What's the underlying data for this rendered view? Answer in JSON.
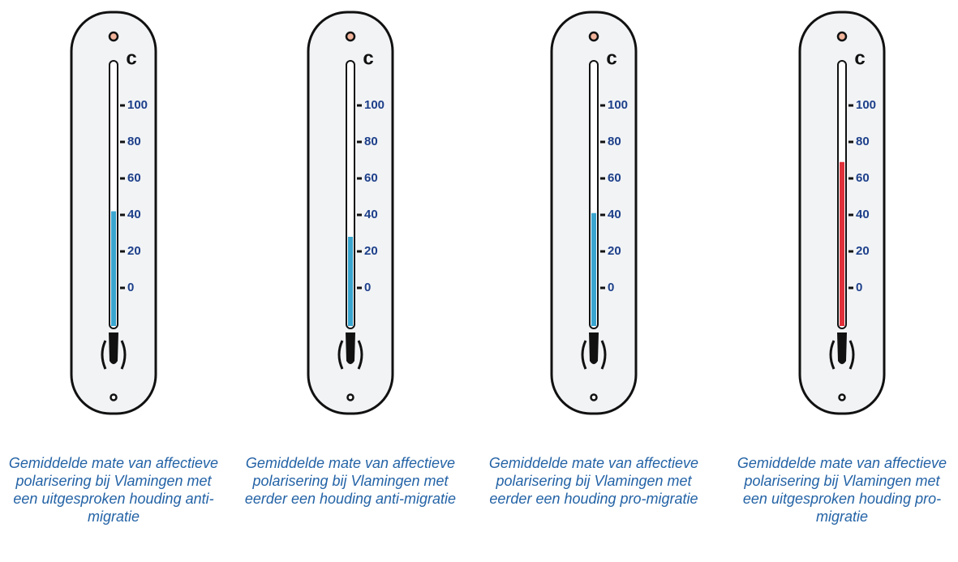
{
  "chart_data": {
    "type": "thermometer",
    "unit_label": "c",
    "categories": [
      "Gemiddelde mate van affectieve polarisering bij Vlamingen met een uitgesproken houding anti-migratie",
      "Gemiddelde mate van affectieve polarisering bij Vlamingen met eerder een houding anti-migratie",
      "Gemiddelde mate van affectieve polarisering bij Vlamingen met eerder een houding pro-migratie",
      "Gemiddelde mate van affectieve polarisering bij Vlamingen met een uitgesproken houding pro-migratie"
    ],
    "values": [
      42,
      28,
      41,
      69
    ],
    "colors": [
      "#3aa6d0",
      "#3aa6d0",
      "#3aa6d0",
      "#e0303a"
    ],
    "ylim": [
      0,
      100
    ],
    "yticks": [
      0,
      20,
      40,
      60,
      80,
      100
    ]
  }
}
